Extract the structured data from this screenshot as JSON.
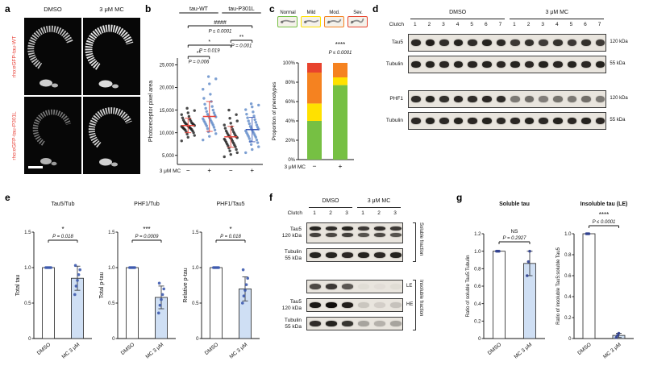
{
  "panel_labels": {
    "a": "a",
    "b": "b",
    "c": "c",
    "d": "d",
    "e": "e",
    "f": "f",
    "g": "g"
  },
  "panel_a": {
    "col_headers": [
      "DMSO",
      "3 μM MC"
    ],
    "row_labels": [
      "rho:eGFP-tau-WT",
      "rho:eGFP-tau-P301L"
    ],
    "row_label_color": "#e8453c"
  },
  "blots": {
    "blot_d": {
      "clutch_label": "Clutch",
      "groups": [
        {
          "label": "DMSO",
          "from": 0,
          "to": 7
        },
        {
          "label": "3 μM MC",
          "from": 7,
          "to": 14
        }
      ],
      "lane_numbers": [
        "1",
        "2",
        "3",
        "4",
        "5",
        "6",
        "7",
        "1",
        "2",
        "3",
        "4",
        "5",
        "6",
        "7"
      ],
      "sections": [
        {
          "rows": [
            {
              "label": "Tau5",
              "kda": "120 kDa",
              "bands": [
                0.88,
                0.92,
                0.85,
                0.9,
                0.86,
                0.9,
                0.87,
                0.8,
                0.84,
                0.78,
                0.83,
                0.8,
                0.84,
                0.79
              ]
            },
            {
              "label": "Tubulin",
              "kda": "55 kDa",
              "bands": [
                0.9,
                0.9,
                0.88,
                0.9,
                0.89,
                0.9,
                0.88,
                0.9,
                0.88,
                0.9,
                0.89,
                0.9,
                0.88,
                0.9
              ]
            }
          ]
        },
        {
          "rows": [
            {
              "label": "PHF1",
              "kda": "120 kDa",
              "bands": [
                0.86,
                0.9,
                0.84,
                0.88,
                0.85,
                0.88,
                0.86,
                0.5,
                0.56,
                0.48,
                0.53,
                0.5,
                0.55,
                0.5
              ]
            },
            {
              "label": "Tubulin",
              "kda": "55 kDa",
              "bands": [
                0.88,
                0.9,
                0.87,
                0.9,
                0.88,
                0.9,
                0.87,
                0.88,
                0.9,
                0.87,
                0.9,
                0.88,
                0.9,
                0.88
              ]
            }
          ]
        }
      ]
    },
    "blot_f": {
      "clutch_label": "Clutch",
      "groups": [
        {
          "label": "DMSO",
          "from": 0,
          "to": 3
        },
        {
          "label": "3 μM MC",
          "from": 3,
          "to": 6
        }
      ],
      "lane_numbers": [
        "1",
        "2",
        "3",
        "1",
        "2",
        "3"
      ],
      "sections": [
        {
          "bracket": "Soluble fraction",
          "rows": [
            {
              "label": "Tau5",
              "label2": "120 kDa",
              "doublet": true,
              "bands": [
                0.9,
                0.86,
                0.9,
                0.8,
                0.85,
                0.8
              ]
            },
            {
              "label": "Tubulin",
              "label2": "55 kDa",
              "bands": [
                0.9,
                0.9,
                0.88,
                0.9,
                0.88,
                0.9
              ]
            }
          ]
        },
        {
          "bracket": "Insoluble fraction",
          "rows": [
            {
              "tag": "LE",
              "bands": [
                0.72,
                0.8,
                0.66,
                0.04,
                0.03,
                0.04
              ]
            },
            {
              "label": "Tau5",
              "label2": "120 kDa",
              "tag": "HE",
              "bands": [
                0.95,
                1,
                0.92,
                0.14,
                0.1,
                0.16
              ]
            },
            {
              "label": "Tubulin",
              "label2": "55 kDa",
              "bands": [
                0.85,
                0.9,
                0.82,
                0.3,
                0.24,
                0.3
              ]
            }
          ]
        }
      ]
    }
  },
  "chart_data": [
    {
      "id": "b-scatter",
      "type": "scatter",
      "ylabel": "Photoreceptor pixel area",
      "ylim": [
        3000,
        26500
      ],
      "yticks": [
        {
          "v": 5000,
          "label": "5,000"
        },
        {
          "v": 10000,
          "label": "10,000"
        },
        {
          "v": 15000,
          "label": "15,000"
        },
        {
          "v": 20000,
          "label": "20,000"
        },
        {
          "v": 25000,
          "label": "25,000"
        }
      ],
      "x_axis_label": "3 μM MC",
      "group_headers": [
        {
          "label": "tau-WT",
          "span": [
            0,
            1
          ]
        },
        {
          "label": "tau-P301L",
          "span": [
            2,
            3
          ]
        }
      ],
      "sig": [
        {
          "stars": "####",
          "p": "P ≤ 0.0001",
          "from": 0,
          "to": 3,
          "y": 28
        },
        {
          "stars": "**",
          "p": "P = 0.001",
          "from": 2,
          "to": 3,
          "y": 46
        },
        {
          "stars": "*",
          "p": "P = 0.019",
          "from": 0,
          "to": 2,
          "y": 52
        },
        {
          "stars": "**",
          "p": "P = 0.006",
          "from": 0,
          "to": 1,
          "y": 66
        }
      ],
      "groups": [
        {
          "tick": "−",
          "dot_color": "#1c1c1c",
          "line_color": "#e8453c",
          "mean": 11600,
          "sd": 1600,
          "values": [
            8200,
            9000,
            9400,
            9700,
            10000,
            10200,
            10400,
            10600,
            10700,
            10800,
            10900,
            11000,
            11100,
            11200,
            11300,
            11400,
            11500,
            11600,
            11700,
            11800,
            11900,
            12000,
            12100,
            12200,
            12400,
            12600,
            12800,
            13000,
            13300,
            13600,
            14000,
            14400,
            14900,
            15400
          ]
        },
        {
          "tick": "+",
          "dot_color": "#5b87c7",
          "line_color": "#e8453c",
          "mean": 13600,
          "sd": 3300,
          "values": [
            8400,
            9200,
            9800,
            10200,
            10600,
            10900,
            11200,
            11500,
            11700,
            11900,
            12100,
            12300,
            12500,
            12700,
            12900,
            13100,
            13300,
            13500,
            13700,
            13900,
            14100,
            14400,
            14700,
            15000,
            15400,
            15800,
            16300,
            16900,
            17600,
            18500,
            19600,
            20800,
            21900,
            22400
          ]
        },
        {
          "tick": "−",
          "dot_color": "#1c1c1c",
          "line_color": "#e8453c",
          "mean": 9100,
          "sd": 2300,
          "values": [
            4700,
            5200,
            5600,
            6000,
            6300,
            6600,
            6900,
            7100,
            7300,
            7500,
            7700,
            7900,
            8100,
            8300,
            8500,
            8600,
            8800,
            8900,
            9000,
            9100,
            9300,
            9400,
            9600,
            9800,
            10000,
            10200,
            10400,
            10700,
            11000,
            11300,
            11700,
            12100,
            12600,
            13200,
            14000,
            15000
          ]
        },
        {
          "tick": "+",
          "dot_color": "#5b87c7",
          "line_color": "#3a57b5",
          "mean": 10700,
          "sd": 2700,
          "values": [
            5600,
            6300,
            6900,
            7400,
            7800,
            8100,
            8400,
            8700,
            9000,
            9200,
            9400,
            9600,
            9800,
            10000,
            10200,
            10400,
            10600,
            10800,
            11000,
            11200,
            11400,
            11700,
            12000,
            12300,
            12600,
            12900,
            13300,
            13700,
            14100,
            14600,
            15100,
            15700,
            16100,
            16400
          ]
        }
      ]
    },
    {
      "id": "c-stacked",
      "type": "stacked",
      "ylabel": "Proportion of phenotypes",
      "yticks": [
        {
          "v": 0,
          "label": "0%"
        },
        {
          "v": 20,
          "label": "20%"
        },
        {
          "v": 40,
          "label": "40%"
        },
        {
          "v": 60,
          "label": "60%"
        },
        {
          "v": 80,
          "label": "80%"
        },
        {
          "v": 100,
          "label": "100%"
        }
      ],
      "categories": [
        "−",
        "+"
      ],
      "x_axis_label": "3 μM MC",
      "legend": [
        {
          "label": "Normal",
          "color": "#76c043"
        },
        {
          "label": "Mild",
          "color": "#ffe100"
        },
        {
          "label": "Mod.",
          "color": "#f58220"
        },
        {
          "label": "Sev.",
          "color": "#e8432d"
        }
      ],
      "series": [
        {
          "name": "Normal",
          "color": "#76c043",
          "values": [
            40,
            77
          ]
        },
        {
          "name": "Mild",
          "color": "#ffe100",
          "values": [
            18,
            8
          ]
        },
        {
          "name": "Mod.",
          "color": "#f58220",
          "values": [
            32,
            15
          ]
        },
        {
          "name": "Sev.",
          "color": "#e8432d",
          "values": [
            10,
            0
          ]
        }
      ],
      "sig": {
        "stars": "****",
        "p": "P ≤ 0.0001",
        "over": 1
      }
    },
    {
      "id": "e1",
      "type": "bar",
      "title": "Tau5/Tub",
      "ylabel": "Total tau",
      "ylim": [
        0,
        1.5
      ],
      "yticks": [
        {
          "v": 0,
          "label": "0"
        },
        {
          "v": 0.5,
          "label": "0.5"
        },
        {
          "v": 1,
          "label": "1.0"
        },
        {
          "v": 1.5,
          "label": "1.5"
        }
      ],
      "categories": [
        "DMSO",
        "MC 3 μM"
      ],
      "values": [
        1.0,
        0.85
      ],
      "errors": [
        0,
        0.17
      ],
      "bar_colors": [
        "#ffffff",
        "#cfdff4"
      ],
      "dot_color": "#3d5aae",
      "dots": [
        [
          1,
          1,
          1,
          1,
          1
        ],
        [
          0.62,
          0.74,
          0.82,
          0.9,
          0.97,
          1.03
        ]
      ],
      "sig": {
        "stars": "*",
        "p": "P = 0.018"
      }
    },
    {
      "id": "e2",
      "type": "bar",
      "title": "PHF1/Tub",
      "ylabel": "Total p-tau",
      "ylim": [
        0,
        1.5
      ],
      "yticks": [
        {
          "v": 0,
          "label": "0"
        },
        {
          "v": 0.5,
          "label": "0.5"
        },
        {
          "v": 1,
          "label": "1.0"
        },
        {
          "v": 1.5,
          "label": "1.5"
        }
      ],
      "categories": [
        "DMSO",
        "MC 3 μM"
      ],
      "values": [
        1.0,
        0.58
      ],
      "errors": [
        0,
        0.16
      ],
      "bar_colors": [
        "#ffffff",
        "#cfdff4"
      ],
      "dot_color": "#3d5aae",
      "dots": [
        [
          1,
          1,
          1,
          1,
          1
        ],
        [
          0.36,
          0.47,
          0.55,
          0.62,
          0.7,
          0.78
        ]
      ],
      "sig": {
        "stars": "***",
        "p": "P = 0.0009"
      }
    },
    {
      "id": "e3",
      "type": "bar",
      "title": "PHF1/Tau5",
      "ylabel": "Relative p-tau",
      "ylim": [
        0,
        1.5
      ],
      "yticks": [
        {
          "v": 0,
          "label": "0"
        },
        {
          "v": 0.5,
          "label": "0.5"
        },
        {
          "v": 1,
          "label": "1.0"
        },
        {
          "v": 1.5,
          "label": "1.5"
        }
      ],
      "categories": [
        "DMSO",
        "MC 3 μM"
      ],
      "values": [
        1.0,
        0.7
      ],
      "errors": [
        0,
        0.17
      ],
      "bar_colors": [
        "#ffffff",
        "#cfdff4"
      ],
      "dot_color": "#3d5aae",
      "dots": [
        [
          1,
          1,
          1,
          1,
          1
        ],
        [
          0.5,
          0.6,
          0.68,
          0.76,
          0.85,
          0.97
        ]
      ],
      "sig": {
        "stars": "*",
        "p": "P = 0.018"
      }
    },
    {
      "id": "g1",
      "type": "bar",
      "title": "Soluble tau",
      "title_bold": true,
      "ylabel": "Ratio of soluble Tau5:Tubulin",
      "ylim": [
        0,
        1.2
      ],
      "yticks": [
        {
          "v": 0,
          "label": "0"
        },
        {
          "v": 0.2,
          "label": "0.2"
        },
        {
          "v": 0.4,
          "label": "0.4"
        },
        {
          "v": 0.6,
          "label": "0.6"
        },
        {
          "v": 0.8,
          "label": "0.8"
        },
        {
          "v": 1,
          "label": "1.0"
        },
        {
          "v": 1.2,
          "label": "1.2"
        }
      ],
      "categories": [
        "DMSO",
        "MC 3 μM"
      ],
      "values": [
        1.0,
        0.86
      ],
      "errors": [
        0,
        0.14
      ],
      "bar_colors": [
        "#ffffff",
        "#cfdff4"
      ],
      "dot_color": "#2f3f8f",
      "dots": [
        [
          1,
          1,
          1
        ],
        [
          0.72,
          0.88,
          1.0
        ]
      ],
      "sig": {
        "stars": "NS",
        "p": "P = 0.2927"
      }
    },
    {
      "id": "g2",
      "type": "bar",
      "title": "Insoluble tau (LE)",
      "title_bold": true,
      "ylabel": "Ratio of insoluble Tau5:soluble Tau5",
      "ylim": [
        0,
        1.0
      ],
      "yticks": [
        {
          "v": 0,
          "label": "0"
        },
        {
          "v": 0.2,
          "label": "0.2"
        },
        {
          "v": 0.4,
          "label": "0.4"
        },
        {
          "v": 0.6,
          "label": "0.6"
        },
        {
          "v": 0.8,
          "label": "0.8"
        },
        {
          "v": 1,
          "label": "1.0"
        }
      ],
      "categories": [
        "DMSO",
        "MC 3 μM"
      ],
      "values": [
        1.0,
        0.03
      ],
      "errors": [
        0,
        0.02
      ],
      "bar_colors": [
        "#ffffff",
        "#cfdff4"
      ],
      "dot_color": "#2f3f8f",
      "dots": [
        [
          1,
          1,
          1
        ],
        [
          0.01,
          0.03,
          0.05
        ]
      ],
      "sig": {
        "stars": "****",
        "p": "P ≤ 0.0001"
      }
    }
  ]
}
